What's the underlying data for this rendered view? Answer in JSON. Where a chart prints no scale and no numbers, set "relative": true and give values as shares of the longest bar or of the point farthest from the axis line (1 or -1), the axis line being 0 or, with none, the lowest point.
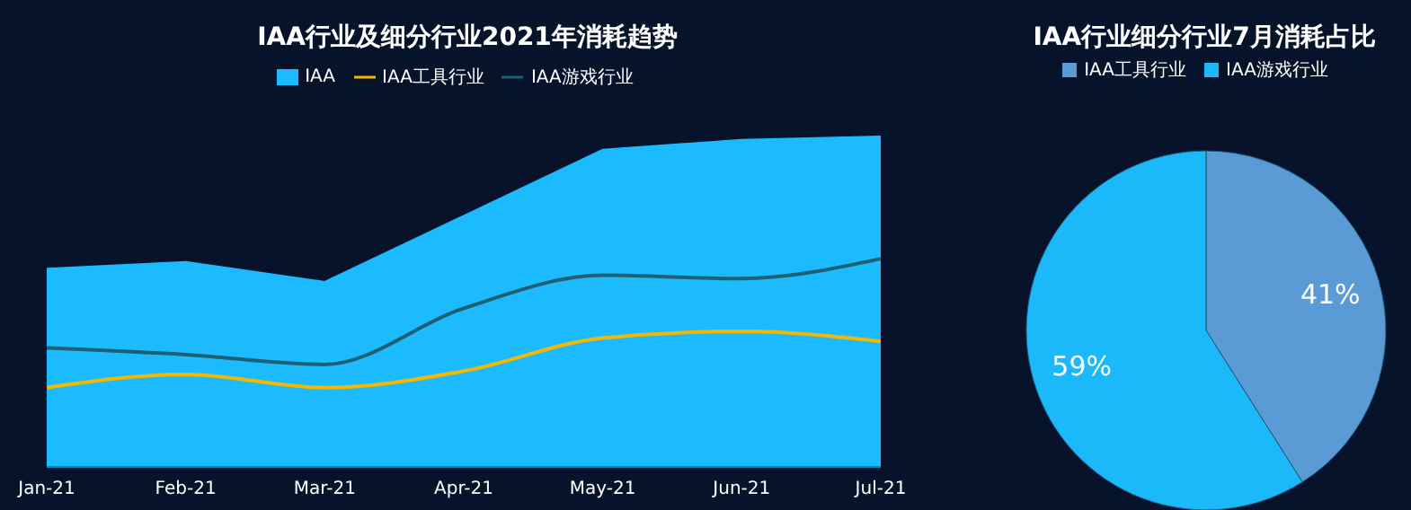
{
  "chart_data": [
    {
      "type": "area",
      "title": "IAA行业及细分行业2021年消耗趋势",
      "relative": true,
      "legend": "top",
      "categories": [
        "Jan-21",
        "Feb-21",
        "Mar-21",
        "Apr-21",
        "May-21",
        "Jun-21",
        "Jul-21"
      ],
      "series": [
        {
          "name": "IAA",
          "color": "#1cbbff",
          "values": [
            0.6,
            0.62,
            0.56,
            0.76,
            0.96,
            0.99,
            1
          ]
        },
        {
          "name": "IAA工具行业",
          "type": "line",
          "color": "#f5b800",
          "values": [
            0.24,
            0.28,
            0.24,
            0.29,
            0.39,
            0.41,
            0.38
          ]
        },
        {
          "name": "IAA游戏行业",
          "type": "line",
          "color": "#1f5f73",
          "values": [
            0.36,
            0.34,
            0.31,
            0.48,
            0.58,
            0.57,
            0.63
          ]
        }
      ]
    },
    {
      "type": "pie",
      "title": "IAA行业细分行业7月消耗占比",
      "legend": "top",
      "categories": [
        "IAA工具行业",
        "IAA游戏行业"
      ],
      "values": [
        41,
        59
      ],
      "colors": [
        "#5b9bd5",
        "#1bb8fa"
      ],
      "value_labels": [
        "41%",
        "59%"
      ]
    }
  ]
}
